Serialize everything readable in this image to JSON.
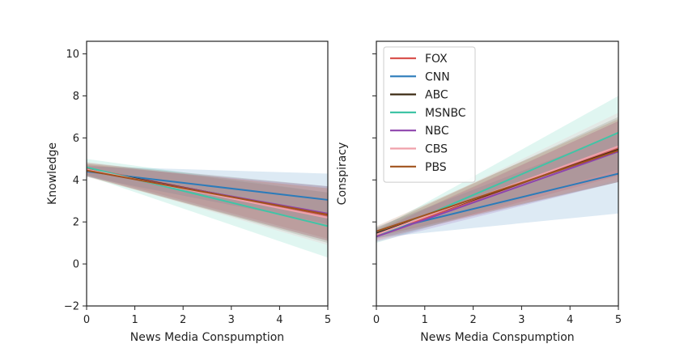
{
  "chart_data": [
    {
      "type": "line",
      "xlabel": "News Media Conspumption",
      "ylabel": "Knowledge",
      "xlim": [
        0,
        5
      ],
      "ylim": [
        -2,
        10.6
      ],
      "xticks": [
        0,
        1,
        2,
        3,
        4,
        5
      ],
      "yticks": [
        -2,
        0,
        2,
        4,
        6,
        8,
        10
      ],
      "grid": false,
      "legend": false,
      "series": [
        {
          "name": "FOX",
          "color": "#d9534f",
          "x": [
            0,
            5
          ],
          "y": [
            4.55,
            2.3
          ],
          "band_lower": [
            4.25,
            1.2
          ],
          "band_upper": [
            4.85,
            3.4
          ]
        },
        {
          "name": "CNN",
          "color": "#2b7bba",
          "x": [
            0,
            5
          ],
          "y": [
            4.4,
            3.05
          ],
          "band_lower": [
            4.15,
            1.9
          ],
          "band_upper": [
            4.65,
            4.3
          ]
        },
        {
          "name": "ABC",
          "color": "#3d2b14",
          "x": [
            0,
            5
          ],
          "y": [
            4.5,
            2.35
          ],
          "band_lower": [
            4.2,
            1.0
          ],
          "band_upper": [
            4.8,
            3.7
          ]
        },
        {
          "name": "MSNBC",
          "color": "#40c4a6",
          "x": [
            0,
            5
          ],
          "y": [
            4.6,
            1.8
          ],
          "band_lower": [
            4.2,
            0.3
          ],
          "band_upper": [
            5.0,
            3.4
          ]
        },
        {
          "name": "NBC",
          "color": "#8e44ad",
          "x": [
            0,
            5
          ],
          "y": [
            4.45,
            2.4
          ],
          "band_lower": [
            4.2,
            1.1
          ],
          "band_upper": [
            4.7,
            3.7
          ]
        },
        {
          "name": "CBS",
          "color": "#f0a0aa",
          "x": [
            0,
            5
          ],
          "y": [
            4.5,
            2.2
          ],
          "band_lower": [
            4.2,
            0.9
          ],
          "band_upper": [
            4.8,
            3.6
          ]
        },
        {
          "name": "PBS",
          "color": "#a0521c",
          "x": [
            0,
            5
          ],
          "y": [
            4.45,
            2.35
          ],
          "band_lower": [
            4.15,
            1.1
          ],
          "band_upper": [
            4.75,
            3.6
          ]
        }
      ]
    },
    {
      "type": "line",
      "xlabel": "News Media Conspumption",
      "ylabel": "Conspiracy",
      "xlim": [
        0,
        5
      ],
      "ylim": [
        -2,
        10.6
      ],
      "xticks": [
        0,
        1,
        2,
        3,
        4,
        5
      ],
      "yticks": [
        -2,
        0,
        2,
        4,
        6,
        8,
        10
      ],
      "ytick_labels_shown": false,
      "grid": false,
      "legend": true,
      "legend_position": "top-left",
      "series": [
        {
          "name": "FOX",
          "color": "#d9534f",
          "x": [
            0,
            5
          ],
          "y": [
            1.35,
            5.5
          ],
          "band_lower": [
            1.1,
            4.2
          ],
          "band_upper": [
            1.6,
            6.8
          ]
        },
        {
          "name": "CNN",
          "color": "#2b7bba",
          "x": [
            0,
            5
          ],
          "y": [
            1.5,
            4.3
          ],
          "band_lower": [
            1.25,
            2.4
          ],
          "band_upper": [
            1.75,
            6.2
          ]
        },
        {
          "name": "ABC",
          "color": "#3d2b14",
          "x": [
            0,
            5
          ],
          "y": [
            1.45,
            5.45
          ],
          "band_lower": [
            1.2,
            3.9
          ],
          "band_upper": [
            1.7,
            7.0
          ]
        },
        {
          "name": "MSNBC",
          "color": "#40c4a6",
          "x": [
            0,
            5
          ],
          "y": [
            1.3,
            6.25
          ],
          "band_lower": [
            1.0,
            4.5
          ],
          "band_upper": [
            1.6,
            8.0
          ]
        },
        {
          "name": "NBC",
          "color": "#8e44ad",
          "x": [
            0,
            5
          ],
          "y": [
            1.3,
            5.35
          ],
          "band_lower": [
            1.05,
            3.9
          ],
          "band_upper": [
            1.55,
            6.8
          ]
        },
        {
          "name": "CBS",
          "color": "#f0a0aa",
          "x": [
            0,
            5
          ],
          "y": [
            1.4,
            5.6
          ],
          "band_lower": [
            1.15,
            4.0
          ],
          "band_upper": [
            1.65,
            7.2
          ]
        },
        {
          "name": "PBS",
          "color": "#a0521c",
          "x": [
            0,
            5
          ],
          "y": [
            1.55,
            5.4
          ],
          "band_lower": [
            1.3,
            3.9
          ],
          "band_upper": [
            1.8,
            6.9
          ]
        }
      ]
    }
  ]
}
